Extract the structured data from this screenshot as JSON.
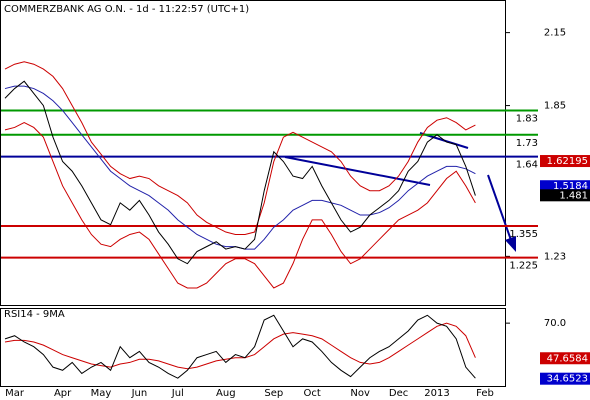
{
  "chart_data": [
    {
      "type": "line",
      "title": "COMMERZBANK AG O.N. - 1d - 11:22:57 (UTC+1)",
      "categories": [
        null,
        "Mar",
        null,
        null,
        null,
        null,
        "Apr",
        null,
        null,
        null,
        "May",
        null,
        null,
        null,
        "Jun",
        null,
        null,
        null,
        "Jul",
        null,
        null,
        null,
        null,
        "Aug",
        null,
        null,
        null,
        null,
        "Sep",
        null,
        null,
        null,
        "Oct",
        null,
        null,
        null,
        null,
        "Nov",
        null,
        null,
        null,
        "Dec",
        null,
        null,
        null,
        "2013",
        null,
        null,
        null,
        null,
        "Feb",
        null
      ],
      "ylim": [
        1.03,
        2.28
      ],
      "yticks": [
        2.15,
        1.85,
        1.23
      ],
      "series": [
        {
          "color": "#cc0000",
          "values": [
            2.0,
            2.02,
            2.03,
            2.02,
            2.0,
            1.97,
            1.92,
            1.85,
            1.78,
            1.7,
            1.65,
            1.6,
            1.57,
            1.55,
            1.56,
            1.55,
            1.52,
            1.5,
            1.48,
            1.45,
            1.4,
            1.37,
            1.35,
            1.33,
            1.32,
            1.32,
            1.33,
            1.45,
            1.62,
            1.72,
            1.74,
            1.72,
            1.7,
            1.68,
            1.66,
            1.62,
            1.56,
            1.52,
            1.5,
            1.5,
            1.52,
            1.56,
            1.62,
            1.7,
            1.76,
            1.79,
            1.8,
            1.78,
            1.75,
            1.77,
            null,
            null
          ]
        },
        {
          "color": "#cc0000",
          "values": [
            1.75,
            1.76,
            1.78,
            1.76,
            1.72,
            1.62,
            1.52,
            1.45,
            1.38,
            1.32,
            1.28,
            1.27,
            1.3,
            1.32,
            1.33,
            1.3,
            1.24,
            1.18,
            1.12,
            1.1,
            1.1,
            1.12,
            1.16,
            1.2,
            1.22,
            1.22,
            1.2,
            1.15,
            1.1,
            1.12,
            1.2,
            1.3,
            1.38,
            1.38,
            1.32,
            1.25,
            1.2,
            1.22,
            1.26,
            1.3,
            1.34,
            1.38,
            1.4,
            1.42,
            1.45,
            1.5,
            1.55,
            1.58,
            1.52,
            1.45,
            null,
            null
          ]
        },
        {
          "color": "#2222aa",
          "values": [
            1.92,
            1.93,
            1.93,
            1.92,
            1.9,
            1.87,
            1.83,
            1.78,
            1.73,
            1.68,
            1.63,
            1.58,
            1.55,
            1.52,
            1.5,
            1.48,
            1.45,
            1.42,
            1.38,
            1.35,
            1.32,
            1.3,
            1.28,
            1.27,
            1.27,
            1.26,
            1.26,
            1.3,
            1.35,
            1.38,
            1.42,
            1.44,
            1.46,
            1.46,
            1.45,
            1.44,
            1.42,
            1.4,
            1.4,
            1.41,
            1.43,
            1.46,
            1.5,
            1.53,
            1.56,
            1.58,
            1.6,
            1.6,
            1.59,
            1.57,
            null,
            null
          ]
        },
        {
          "color": "#000000",
          "values": [
            1.88,
            1.92,
            1.95,
            1.9,
            1.85,
            1.72,
            1.62,
            1.58,
            1.52,
            1.45,
            1.38,
            1.36,
            1.45,
            1.42,
            1.46,
            1.4,
            1.33,
            1.28,
            1.22,
            1.2,
            1.25,
            1.27,
            1.29,
            1.26,
            1.27,
            1.26,
            1.3,
            1.5,
            1.66,
            1.62,
            1.56,
            1.55,
            1.6,
            1.52,
            1.45,
            1.38,
            1.33,
            1.35,
            1.4,
            1.43,
            1.46,
            1.5,
            1.58,
            1.62,
            1.7,
            1.73,
            1.7,
            1.69,
            1.6,
            1.48,
            null,
            null
          ]
        }
      ],
      "levels": [
        {
          "value": 1.83,
          "color": "#009900"
        },
        {
          "value": 1.73,
          "color": "#009900"
        },
        {
          "value": 1.64,
          "color": "#000099"
        },
        {
          "value": 1.355,
          "color": "#cc0000"
        },
        {
          "value": 1.225,
          "color": "#cc0000"
        }
      ],
      "last_values": [
        {
          "value": 1.62195,
          "color": "#cc0000"
        },
        {
          "value": 1.5184,
          "color": "#0000cc"
        },
        {
          "value": 1.481,
          "color": "#000000"
        }
      ]
    },
    {
      "type": "line",
      "title": "RSI14 - 9MA",
      "ylim": [
        30,
        79
      ],
      "yticks": [
        {
          "value": 70,
          "label": "70.0"
        }
      ],
      "series": [
        {
          "color": "#cc0000",
          "values": [
            58,
            59,
            59,
            58,
            56,
            53,
            50,
            48,
            46,
            44,
            43,
            42,
            44,
            45,
            47,
            47,
            46,
            44,
            42,
            41,
            42,
            44,
            46,
            47,
            48,
            48,
            50,
            55,
            60,
            63,
            64,
            63,
            62,
            60,
            56,
            52,
            48,
            45,
            44,
            45,
            48,
            52,
            56,
            60,
            64,
            68,
            70,
            68,
            62,
            48,
            null,
            null
          ]
        },
        {
          "color": "#000000",
          "values": [
            60,
            62,
            58,
            55,
            50,
            42,
            40,
            45,
            38,
            42,
            45,
            40,
            55,
            48,
            52,
            45,
            42,
            38,
            35,
            40,
            48,
            50,
            52,
            45,
            50,
            48,
            55,
            72,
            75,
            65,
            55,
            60,
            58,
            52,
            45,
            40,
            36,
            42,
            48,
            52,
            55,
            60,
            65,
            72,
            75,
            70,
            68,
            60,
            42,
            35,
            null,
            null
          ]
        }
      ],
      "last_values": [
        {
          "value": 47.6584,
          "color": "#cc0000"
        },
        {
          "value": 34.6523,
          "color": "#0000cc"
        }
      ]
    }
  ]
}
